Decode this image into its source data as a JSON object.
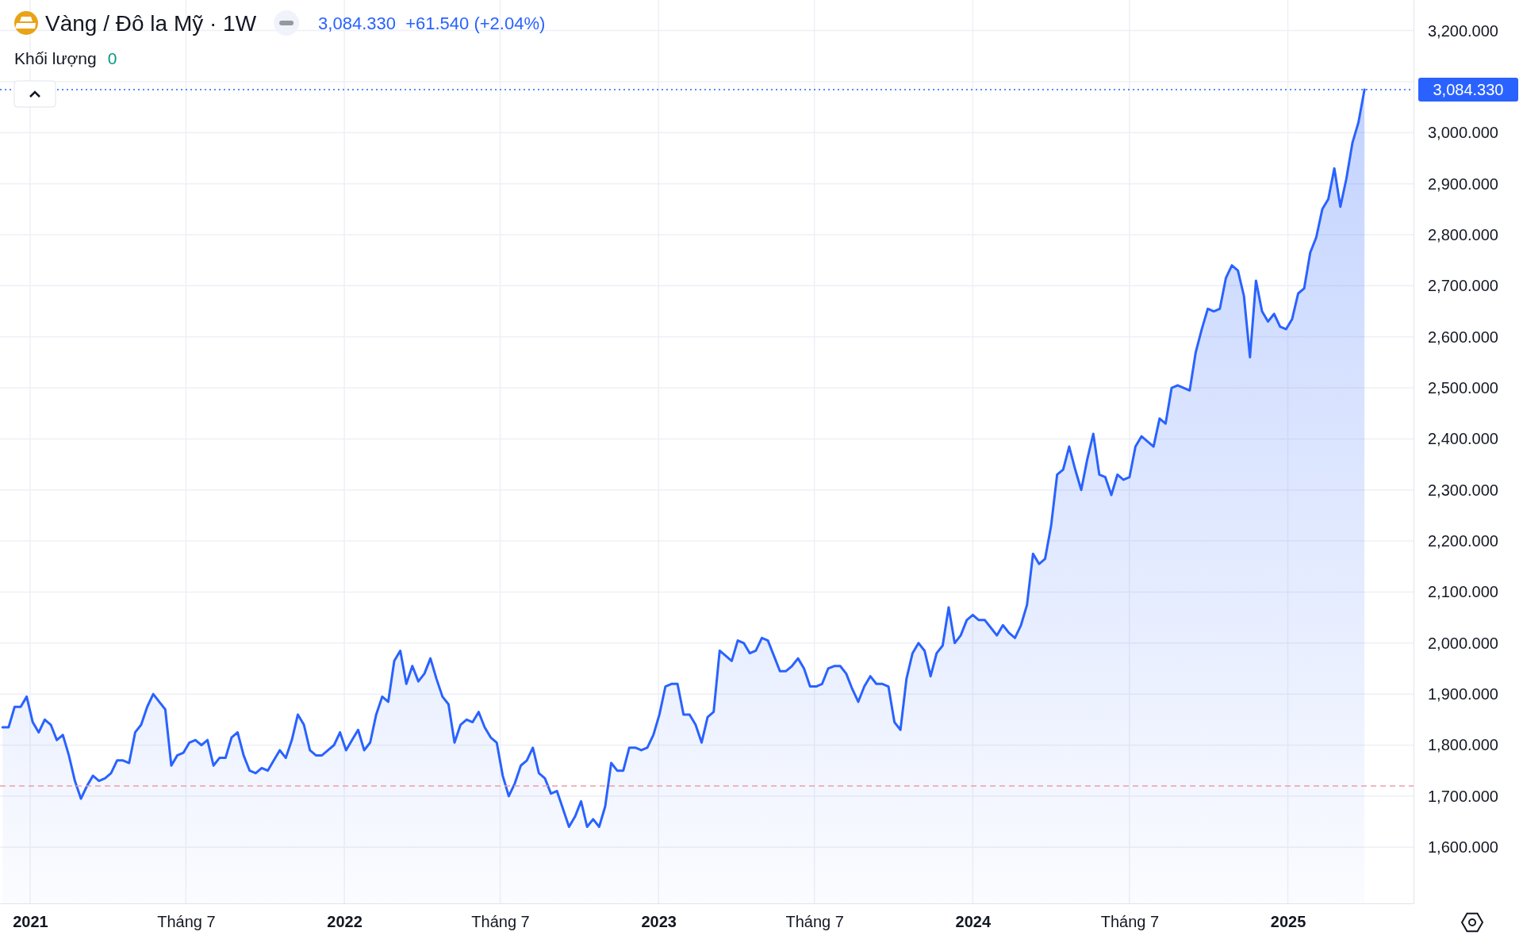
{
  "chart_data": {
    "type": "area",
    "title": "Vàng / Đô la Mỹ · 1W",
    "subtitle": "3,084.330  +61.540 (+2.04%)",
    "annotations": [
      "Khối lượng",
      "0"
    ],
    "x": [
      "2020-11-30",
      "2020-12-07",
      "2020-12-14",
      "2020-12-21",
      "2020-12-28",
      "2021-01-04",
      "2021-01-11",
      "2021-01-18",
      "2021-01-25",
      "2021-02-01",
      "2021-02-08",
      "2021-02-15",
      "2021-02-22",
      "2021-03-01",
      "2021-03-08",
      "2021-03-15",
      "2021-03-22",
      "2021-03-29",
      "2021-04-05",
      "2021-04-12",
      "2021-04-19",
      "2021-04-26",
      "2021-05-03",
      "2021-05-10",
      "2021-05-17",
      "2021-05-24",
      "2021-05-31",
      "2021-06-07",
      "2021-06-14",
      "2021-06-21",
      "2021-06-28",
      "2021-07-05",
      "2021-07-12",
      "2021-07-19",
      "2021-07-26",
      "2021-08-02",
      "2021-08-09",
      "2021-08-16",
      "2021-08-23",
      "2021-08-30",
      "2021-09-06",
      "2021-09-13",
      "2021-09-20",
      "2021-09-27",
      "2021-10-04",
      "2021-10-11",
      "2021-10-18",
      "2021-10-25",
      "2021-11-01",
      "2021-11-08",
      "2021-11-15",
      "2021-11-22",
      "2021-11-29",
      "2021-12-06",
      "2021-12-13",
      "2021-12-20",
      "2021-12-27",
      "2022-01-03",
      "2022-01-10",
      "2022-01-17",
      "2022-01-24",
      "2022-01-31",
      "2022-02-07",
      "2022-02-14",
      "2022-02-21",
      "2022-02-28",
      "2022-03-07",
      "2022-03-14",
      "2022-03-21",
      "2022-03-28",
      "2022-04-04",
      "2022-04-11",
      "2022-04-18",
      "2022-04-25",
      "2022-05-02",
      "2022-05-09",
      "2022-05-16",
      "2022-05-23",
      "2022-05-30",
      "2022-06-06",
      "2022-06-13",
      "2022-06-20",
      "2022-06-27",
      "2022-07-04",
      "2022-07-11",
      "2022-07-18",
      "2022-07-25",
      "2022-08-01",
      "2022-08-08",
      "2022-08-15",
      "2022-08-22",
      "2022-08-29",
      "2022-09-05",
      "2022-09-12",
      "2022-09-19",
      "2022-09-26",
      "2022-10-03",
      "2022-10-10",
      "2022-10-17",
      "2022-10-24",
      "2022-10-31",
      "2022-11-07",
      "2022-11-14",
      "2022-11-21",
      "2022-11-28",
      "2022-12-05",
      "2022-12-12",
      "2022-12-19",
      "2022-12-26",
      "2023-01-02",
      "2023-01-09",
      "2023-01-16",
      "2023-01-23",
      "2023-01-30",
      "2023-02-06",
      "2023-02-13",
      "2023-02-20",
      "2023-02-27",
      "2023-03-06",
      "2023-03-13",
      "2023-03-20",
      "2023-03-27",
      "2023-04-03",
      "2023-04-10",
      "2023-04-17",
      "2023-04-24",
      "2023-05-01",
      "2023-05-08",
      "2023-05-15",
      "2023-05-22",
      "2023-05-29",
      "2023-06-05",
      "2023-06-12",
      "2023-06-19",
      "2023-06-26",
      "2023-07-03",
      "2023-07-10",
      "2023-07-17",
      "2023-07-24",
      "2023-07-31",
      "2023-08-07",
      "2023-08-14",
      "2023-08-21",
      "2023-08-28",
      "2023-09-04",
      "2023-09-11",
      "2023-09-18",
      "2023-09-25",
      "2023-10-02",
      "2023-10-09",
      "2023-10-16",
      "2023-10-23",
      "2023-10-30",
      "2023-11-06",
      "2023-11-13",
      "2023-11-20",
      "2023-11-27",
      "2023-12-04",
      "2023-12-11",
      "2023-12-18",
      "2023-12-25",
      "2024-01-01",
      "2024-01-08",
      "2024-01-15",
      "2024-01-22",
      "2024-01-29",
      "2024-02-05",
      "2024-02-12",
      "2024-02-19",
      "2024-02-26",
      "2024-03-04",
      "2024-03-11",
      "2024-03-18",
      "2024-03-25",
      "2024-04-01",
      "2024-04-08",
      "2024-04-15",
      "2024-04-22",
      "2024-04-29",
      "2024-05-06",
      "2024-05-13",
      "2024-05-20",
      "2024-05-27",
      "2024-06-03",
      "2024-06-10",
      "2024-06-17",
      "2024-06-24",
      "2024-07-01",
      "2024-07-08",
      "2024-07-15",
      "2024-07-22",
      "2024-07-29",
      "2024-08-05",
      "2024-08-12",
      "2024-08-19",
      "2024-08-26",
      "2024-09-02",
      "2024-09-09",
      "2024-09-16",
      "2024-09-23",
      "2024-09-30",
      "2024-10-07",
      "2024-10-14",
      "2024-10-21",
      "2024-10-28",
      "2024-11-04",
      "2024-11-11",
      "2024-11-18",
      "2024-11-25",
      "2024-12-02",
      "2024-12-09",
      "2024-12-16",
      "2024-12-23",
      "2024-12-30",
      "2025-01-06",
      "2025-01-13",
      "2025-01-20",
      "2025-01-27",
      "2025-02-03",
      "2025-02-10",
      "2025-02-17",
      "2025-02-24",
      "2025-03-03",
      "2025-03-10",
      "2025-03-17",
      "2025-03-24",
      "2025-03-31"
    ],
    "series": [
      {
        "color": "#2962ff",
        "values": [
          1835,
          1835,
          1875,
          1875,
          1895,
          1845,
          1825,
          1850,
          1840,
          1810,
          1820,
          1780,
          1730,
          1695,
          1720,
          1740,
          1730,
          1735,
          1745,
          1770,
          1770,
          1765,
          1825,
          1840,
          1875,
          1900,
          1885,
          1870,
          1760,
          1780,
          1785,
          1805,
          1810,
          1800,
          1810,
          1760,
          1775,
          1775,
          1815,
          1825,
          1780,
          1750,
          1745,
          1755,
          1750,
          1770,
          1790,
          1775,
          1810,
          1860,
          1840,
          1790,
          1780,
          1780,
          1790,
          1800,
          1825,
          1790,
          1810,
          1830,
          1790,
          1805,
          1860,
          1895,
          1885,
          1965,
          1985,
          1920,
          1955,
          1925,
          1940,
          1970,
          1930,
          1895,
          1880,
          1805,
          1840,
          1850,
          1845,
          1865,
          1835,
          1815,
          1805,
          1740,
          1700,
          1725,
          1760,
          1770,
          1795,
          1745,
          1735,
          1705,
          1710,
          1675,
          1640,
          1660,
          1690,
          1640,
          1655,
          1640,
          1680,
          1765,
          1750,
          1750,
          1795,
          1795,
          1790,
          1795,
          1820,
          1860,
          1915,
          1920,
          1920,
          1860,
          1860,
          1840,
          1805,
          1855,
          1865,
          1985,
          1975,
          1965,
          2005,
          2000,
          1980,
          1985,
          2010,
          2005,
          1975,
          1945,
          1945,
          1955,
          1970,
          1950,
          1915,
          1915,
          1920,
          1950,
          1955,
          1955,
          1940,
          1910,
          1885,
          1915,
          1935,
          1920,
          1920,
          1915,
          1845,
          1830,
          1930,
          1980,
          2000,
          1985,
          1935,
          1980,
          1995,
          2070,
          2000,
          2015,
          2045,
          2055,
          2045,
          2045,
          2030,
          2015,
          2035,
          2020,
          2010,
          2035,
          2075,
          2175,
          2155,
          2165,
          2230,
          2330,
          2340,
          2385,
          2340,
          2300,
          2360,
          2410,
          2330,
          2325,
          2290,
          2330,
          2320,
          2325,
          2385,
          2405,
          2395,
          2385,
          2440,
          2430,
          2500,
          2505,
          2500,
          2495,
          2570,
          2615,
          2655,
          2650,
          2655,
          2715,
          2740,
          2730,
          2680,
          2560,
          2710,
          2650,
          2630,
          2645,
          2620,
          2615,
          2635,
          2685,
          2695,
          2765,
          2795,
          2850,
          2870,
          2930,
          2855,
          2910,
          2980,
          3020,
          3084.33
        ]
      }
    ],
    "xlim": [
      "2020-11-27",
      "2025-05-27"
    ],
    "xticks": [
      {
        "value": "2021-01-01",
        "label": "2021"
      },
      {
        "value": "2021-07-01",
        "label": "Tháng 7"
      },
      {
        "value": "2022-01-01",
        "label": "2022"
      },
      {
        "value": "2022-07-01",
        "label": "Tháng 7"
      },
      {
        "value": "2023-01-01",
        "label": "2023"
      },
      {
        "value": "2023-07-01",
        "label": "Tháng 7"
      },
      {
        "value": "2024-01-01",
        "label": "2024"
      },
      {
        "value": "2024-07-01",
        "label": "Tháng 7"
      },
      {
        "value": "2025-01-01",
        "label": "2025"
      }
    ],
    "ylim": [
      1490,
      3260
    ],
    "yticks": [
      {
        "value": 1600,
        "label": "1,600.000"
      },
      {
        "value": 1700,
        "label": "1,700.000"
      },
      {
        "value": 1800,
        "label": "1,800.000"
      },
      {
        "value": 1900,
        "label": "1,900.000"
      },
      {
        "value": 2000,
        "label": "2,000.000"
      },
      {
        "value": 2100,
        "label": "2,100.000"
      },
      {
        "value": 2200,
        "label": "2,200.000"
      },
      {
        "value": 2300,
        "label": "2,300.000"
      },
      {
        "value": 2400,
        "label": "2,400.000"
      },
      {
        "value": 2500,
        "label": "2,500.000"
      },
      {
        "value": 2600,
        "label": "2,600.000"
      },
      {
        "value": 2700,
        "label": "2,700.000"
      },
      {
        "value": 2800,
        "label": "2,800.000"
      },
      {
        "value": 2900,
        "label": "2,900.000"
      },
      {
        "value": 3000,
        "label": "3,000.000"
      },
      {
        "value": 3100,
        "label": null
      },
      {
        "value": 3200,
        "label": "3,200.000"
      }
    ],
    "grid": true,
    "ref_lines": [
      {
        "axis": "y",
        "value": 3084.33,
        "label": "3,084.330",
        "color": "#2962ff",
        "line_style": "dotted"
      },
      {
        "axis": "y",
        "value": 1720,
        "color": "#e8a0ac",
        "line_style": "dashed"
      }
    ]
  }
}
